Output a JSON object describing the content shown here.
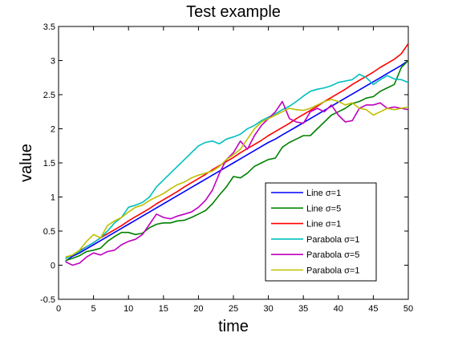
{
  "chart_data": {
    "type": "line",
    "title": "Test example",
    "xlabel": "time",
    "ylabel": "value",
    "xlim": [
      0,
      50
    ],
    "ylim": [
      -0.5,
      3.5
    ],
    "xticks": [
      0,
      5,
      10,
      15,
      20,
      25,
      30,
      35,
      40,
      45,
      50
    ],
    "yticks": [
      -0.5,
      0,
      0.5,
      1,
      1.5,
      2,
      2.5,
      3,
      3.5
    ],
    "ytick_labels": [
      "-0.5",
      "0",
      "0.5",
      "1",
      "1.5",
      "2",
      "2.5",
      "3",
      "3.5"
    ],
    "grid": false,
    "legend_position": "lower-right",
    "series": [
      {
        "name": "Line σ=1",
        "color": "#0000ff",
        "points": [
          [
            1,
            0.06
          ],
          [
            2,
            0.13
          ],
          [
            3,
            0.18
          ],
          [
            4,
            0.24
          ],
          [
            5,
            0.3
          ],
          [
            6,
            0.36
          ],
          [
            7,
            0.42
          ],
          [
            8,
            0.48
          ],
          [
            9,
            0.54
          ],
          [
            10,
            0.6
          ],
          [
            11,
            0.66
          ],
          [
            12,
            0.72
          ],
          [
            13,
            0.78
          ],
          [
            14,
            0.84
          ],
          [
            15,
            0.9
          ],
          [
            16,
            0.96
          ],
          [
            17,
            1.02
          ],
          [
            18,
            1.08
          ],
          [
            19,
            1.14
          ],
          [
            20,
            1.2
          ],
          [
            21,
            1.26
          ],
          [
            22,
            1.32
          ],
          [
            23,
            1.38
          ],
          [
            24,
            1.44
          ],
          [
            25,
            1.5
          ],
          [
            26,
            1.56
          ],
          [
            27,
            1.62
          ],
          [
            28,
            1.68
          ],
          [
            29,
            1.74
          ],
          [
            30,
            1.8
          ],
          [
            31,
            1.85
          ],
          [
            32,
            1.91
          ],
          [
            33,
            1.97
          ],
          [
            34,
            2.03
          ],
          [
            35,
            2.09
          ],
          [
            36,
            2.15
          ],
          [
            37,
            2.21
          ],
          [
            38,
            2.27
          ],
          [
            39,
            2.33
          ],
          [
            40,
            2.39
          ],
          [
            41,
            2.45
          ],
          [
            42,
            2.51
          ],
          [
            43,
            2.57
          ],
          [
            44,
            2.63
          ],
          [
            45,
            2.69
          ],
          [
            46,
            2.75
          ],
          [
            47,
            2.81
          ],
          [
            48,
            2.87
          ],
          [
            49,
            2.93
          ],
          [
            50,
            3.0
          ]
        ]
      },
      {
        "name": "Line σ=5",
        "color": "#008000",
        "points": [
          [
            1,
            0.07
          ],
          [
            2,
            0.1
          ],
          [
            3,
            0.14
          ],
          [
            4,
            0.2
          ],
          [
            5,
            0.22
          ],
          [
            6,
            0.25
          ],
          [
            7,
            0.35
          ],
          [
            8,
            0.42
          ],
          [
            9,
            0.48
          ],
          [
            10,
            0.48
          ],
          [
            11,
            0.45
          ],
          [
            12,
            0.47
          ],
          [
            13,
            0.55
          ],
          [
            14,
            0.6
          ],
          [
            15,
            0.62
          ],
          [
            16,
            0.62
          ],
          [
            17,
            0.65
          ],
          [
            18,
            0.66
          ],
          [
            19,
            0.7
          ],
          [
            20,
            0.75
          ],
          [
            21,
            0.8
          ],
          [
            22,
            0.9
          ],
          [
            23,
            1.03
          ],
          [
            24,
            1.15
          ],
          [
            25,
            1.3
          ],
          [
            26,
            1.28
          ],
          [
            27,
            1.35
          ],
          [
            28,
            1.45
          ],
          [
            29,
            1.5
          ],
          [
            30,
            1.55
          ],
          [
            31,
            1.57
          ],
          [
            32,
            1.73
          ],
          [
            33,
            1.8
          ],
          [
            34,
            1.85
          ],
          [
            35,
            1.9
          ],
          [
            36,
            1.9
          ],
          [
            37,
            2.0
          ],
          [
            38,
            2.1
          ],
          [
            39,
            2.2
          ],
          [
            40,
            2.25
          ],
          [
            41,
            2.3
          ],
          [
            42,
            2.37
          ],
          [
            43,
            2.4
          ],
          [
            44,
            2.45
          ],
          [
            45,
            2.47
          ],
          [
            46,
            2.55
          ],
          [
            47,
            2.6
          ],
          [
            48,
            2.65
          ],
          [
            49,
            2.9
          ],
          [
            50,
            3.0
          ]
        ]
      },
      {
        "name": "Line σ=1",
        "color": "#ff0000",
        "points": [
          [
            1,
            0.1
          ],
          [
            2,
            0.15
          ],
          [
            3,
            0.21
          ],
          [
            4,
            0.27
          ],
          [
            5,
            0.33
          ],
          [
            6,
            0.4
          ],
          [
            7,
            0.46
          ],
          [
            8,
            0.52
          ],
          [
            9,
            0.58
          ],
          [
            10,
            0.65
          ],
          [
            11,
            0.71
          ],
          [
            12,
            0.77
          ],
          [
            13,
            0.83
          ],
          [
            14,
            0.9
          ],
          [
            15,
            0.96
          ],
          [
            16,
            1.02
          ],
          [
            17,
            1.08
          ],
          [
            18,
            1.15
          ],
          [
            19,
            1.21
          ],
          [
            20,
            1.27
          ],
          [
            21,
            1.33
          ],
          [
            22,
            1.4
          ],
          [
            23,
            1.46
          ],
          [
            24,
            1.52
          ],
          [
            25,
            1.58
          ],
          [
            26,
            1.65
          ],
          [
            27,
            1.71
          ],
          [
            28,
            1.77
          ],
          [
            29,
            1.83
          ],
          [
            30,
            1.9
          ],
          [
            31,
            1.96
          ],
          [
            32,
            2.02
          ],
          [
            33,
            2.08
          ],
          [
            34,
            2.15
          ],
          [
            35,
            2.21
          ],
          [
            36,
            2.27
          ],
          [
            37,
            2.33
          ],
          [
            38,
            2.4
          ],
          [
            39,
            2.46
          ],
          [
            40,
            2.52
          ],
          [
            41,
            2.58
          ],
          [
            42,
            2.65
          ],
          [
            43,
            2.71
          ],
          [
            44,
            2.77
          ],
          [
            45,
            2.83
          ],
          [
            46,
            2.9
          ],
          [
            47,
            2.96
          ],
          [
            48,
            3.02
          ],
          [
            49,
            3.1
          ],
          [
            50,
            3.25
          ]
        ]
      },
      {
        "name": "Parabola σ=1",
        "color": "#00bfbf",
        "points": [
          [
            1,
            0.1
          ],
          [
            2,
            0.15
          ],
          [
            3,
            0.2
          ],
          [
            4,
            0.27
          ],
          [
            5,
            0.33
          ],
          [
            6,
            0.4
          ],
          [
            7,
            0.5
          ],
          [
            8,
            0.62
          ],
          [
            9,
            0.7
          ],
          [
            10,
            0.85
          ],
          [
            11,
            0.88
          ],
          [
            12,
            0.92
          ],
          [
            13,
            1.0
          ],
          [
            14,
            1.15
          ],
          [
            15,
            1.25
          ],
          [
            16,
            1.35
          ],
          [
            17,
            1.45
          ],
          [
            18,
            1.55
          ],
          [
            19,
            1.65
          ],
          [
            20,
            1.75
          ],
          [
            21,
            1.8
          ],
          [
            22,
            1.82
          ],
          [
            23,
            1.78
          ],
          [
            24,
            1.85
          ],
          [
            25,
            1.88
          ],
          [
            26,
            1.92
          ],
          [
            27,
            2.0
          ],
          [
            28,
            2.05
          ],
          [
            29,
            2.12
          ],
          [
            30,
            2.17
          ],
          [
            31,
            2.22
          ],
          [
            32,
            2.28
          ],
          [
            33,
            2.33
          ],
          [
            34,
            2.4
          ],
          [
            35,
            2.48
          ],
          [
            36,
            2.55
          ],
          [
            37,
            2.58
          ],
          [
            38,
            2.6
          ],
          [
            39,
            2.63
          ],
          [
            40,
            2.68
          ],
          [
            41,
            2.7
          ],
          [
            42,
            2.72
          ],
          [
            43,
            2.8
          ],
          [
            44,
            2.75
          ],
          [
            45,
            2.65
          ],
          [
            46,
            2.72
          ],
          [
            47,
            2.78
          ],
          [
            48,
            2.73
          ],
          [
            49,
            2.72
          ],
          [
            50,
            2.68
          ]
        ]
      },
      {
        "name": "Parabola σ=5",
        "color": "#bf00bf",
        "points": [
          [
            1,
            0.05
          ],
          [
            2,
            0.0
          ],
          [
            3,
            0.03
          ],
          [
            4,
            0.12
          ],
          [
            5,
            0.18
          ],
          [
            6,
            0.15
          ],
          [
            7,
            0.2
          ],
          [
            8,
            0.22
          ],
          [
            9,
            0.3
          ],
          [
            10,
            0.35
          ],
          [
            11,
            0.38
          ],
          [
            12,
            0.45
          ],
          [
            13,
            0.6
          ],
          [
            14,
            0.75
          ],
          [
            15,
            0.7
          ],
          [
            16,
            0.68
          ],
          [
            17,
            0.72
          ],
          [
            18,
            0.75
          ],
          [
            19,
            0.78
          ],
          [
            20,
            0.85
          ],
          [
            21,
            0.95
          ],
          [
            22,
            1.1
          ],
          [
            23,
            1.35
          ],
          [
            24,
            1.55
          ],
          [
            25,
            1.65
          ],
          [
            26,
            1.82
          ],
          [
            27,
            1.7
          ],
          [
            28,
            1.9
          ],
          [
            29,
            2.05
          ],
          [
            30,
            2.15
          ],
          [
            31,
            2.25
          ],
          [
            32,
            2.4
          ],
          [
            33,
            2.15
          ],
          [
            34,
            2.1
          ],
          [
            35,
            2.08
          ],
          [
            36,
            2.25
          ],
          [
            37,
            2.3
          ],
          [
            38,
            2.25
          ],
          [
            39,
            2.35
          ],
          [
            40,
            2.2
          ],
          [
            41,
            2.1
          ],
          [
            42,
            2.12
          ],
          [
            43,
            2.3
          ],
          [
            44,
            2.35
          ],
          [
            45,
            2.35
          ],
          [
            46,
            2.38
          ],
          [
            47,
            2.3
          ],
          [
            48,
            2.32
          ],
          [
            49,
            2.3
          ],
          [
            50,
            2.28
          ]
        ]
      },
      {
        "name": "Parabola σ=1",
        "color": "#bfbf00",
        "points": [
          [
            1,
            0.12
          ],
          [
            2,
            0.15
          ],
          [
            3,
            0.22
          ],
          [
            4,
            0.35
          ],
          [
            5,
            0.45
          ],
          [
            6,
            0.4
          ],
          [
            7,
            0.58
          ],
          [
            8,
            0.65
          ],
          [
            9,
            0.7
          ],
          [
            10,
            0.78
          ],
          [
            11,
            0.85
          ],
          [
            12,
            0.88
          ],
          [
            13,
            0.95
          ],
          [
            14,
            1.0
          ],
          [
            15,
            1.05
          ],
          [
            16,
            1.12
          ],
          [
            17,
            1.18
          ],
          [
            18,
            1.22
          ],
          [
            19,
            1.28
          ],
          [
            20,
            1.32
          ],
          [
            21,
            1.35
          ],
          [
            22,
            1.38
          ],
          [
            23,
            1.45
          ],
          [
            24,
            1.55
          ],
          [
            25,
            1.62
          ],
          [
            26,
            1.7
          ],
          [
            27,
            1.85
          ],
          [
            28,
            2.0
          ],
          [
            29,
            2.1
          ],
          [
            30,
            2.15
          ],
          [
            31,
            2.2
          ],
          [
            32,
            2.25
          ],
          [
            33,
            2.3
          ],
          [
            34,
            2.28
          ],
          [
            35,
            2.27
          ],
          [
            36,
            2.3
          ],
          [
            37,
            2.35
          ],
          [
            38,
            2.4
          ],
          [
            39,
            2.43
          ],
          [
            40,
            2.4
          ],
          [
            41,
            2.35
          ],
          [
            42,
            2.38
          ],
          [
            43,
            2.3
          ],
          [
            44,
            2.28
          ],
          [
            45,
            2.2
          ],
          [
            46,
            2.25
          ],
          [
            47,
            2.3
          ],
          [
            48,
            2.28
          ],
          [
            49,
            2.3
          ],
          [
            50,
            2.32
          ]
        ]
      }
    ]
  }
}
